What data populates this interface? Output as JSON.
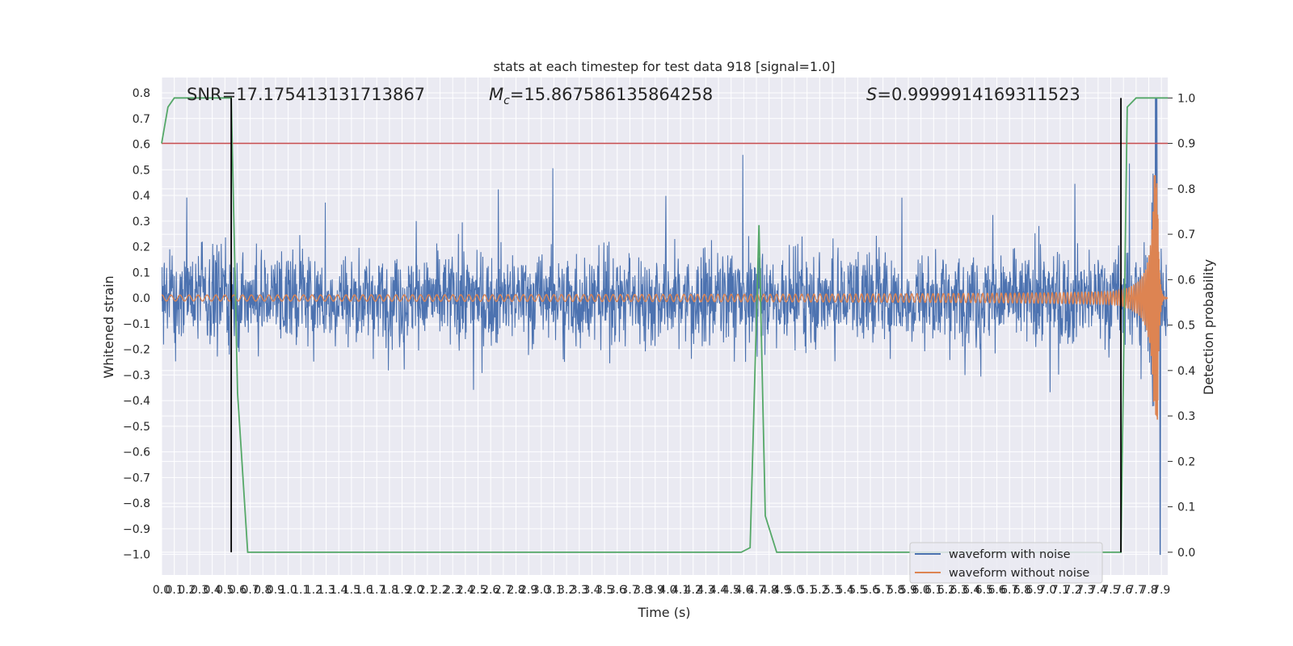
{
  "chart_data": {
    "type": "line",
    "title": "stats at each timestep for test data 918 [signal=1.0]",
    "xlabel": "Time (s)",
    "ylabel_left": "Whitened strain",
    "ylabel_right": "Detection probability",
    "xlim": [
      0.0,
      7.95
    ],
    "ylim_left": [
      -1.08,
      0.86
    ],
    "ylim_right": [
      -0.05,
      1.045
    ],
    "x_ticks": [
      "0.0",
      "0.1",
      "0.2",
      "0.3",
      "0.4",
      "0.5",
      "0.6",
      "0.7",
      "0.8",
      "0.9",
      "1.0",
      "1.1",
      "1.2",
      "1.3",
      "1.4",
      "1.5",
      "1.6",
      "1.7",
      "1.8",
      "1.9",
      "2.0",
      "2.1",
      "2.2",
      "2.3",
      "2.4",
      "2.5",
      "2.6",
      "2.7",
      "2.8",
      "2.9",
      "3.0",
      "3.1",
      "3.2",
      "3.3",
      "3.4",
      "3.5",
      "3.6",
      "3.7",
      "3.8",
      "3.9",
      "4.0",
      "4.1",
      "4.2",
      "4.3",
      "4.4",
      "4.5",
      "4.6",
      "4.7",
      "4.8",
      "4.9",
      "5.0",
      "5.1",
      "5.2",
      "5.3",
      "5.4",
      "5.5",
      "5.6",
      "5.7",
      "5.8",
      "5.9",
      "6.0",
      "6.1",
      "6.2",
      "6.3",
      "6.4",
      "6.5",
      "6.6",
      "6.7",
      "6.8",
      "6.9",
      "7.0",
      "7.1",
      "7.2",
      "7.3",
      "7.4",
      "7.5",
      "7.6",
      "7.7",
      "7.8",
      "7.9"
    ],
    "y_ticks_left": [
      "0.8",
      "0.7",
      "0.6",
      "0.5",
      "0.4",
      "0.3",
      "0.2",
      "0.1",
      "0.0",
      "−0.1",
      "−0.2",
      "−0.3",
      "−0.4",
      "−0.5",
      "−0.6",
      "−0.7",
      "−0.8",
      "−0.9",
      "−1.0"
    ],
    "y_ticks_right": [
      "1.0",
      "0.9",
      "0.8",
      "0.7",
      "0.6",
      "0.5",
      "0.4",
      "0.3",
      "0.2",
      "0.1",
      "0.0"
    ],
    "annotations": {
      "snr": "SNR=17.175413131713867",
      "mc_symbol": "M",
      "mc_sub": "c",
      "mc_value": "=15.867586135864258",
      "s_symbol": "S",
      "s_value": "=0.9999914169311523"
    },
    "threshold_line": {
      "y": 0.9,
      "axis": "right",
      "color": "#c44e52"
    },
    "vertical_markers": [
      {
        "x": 0.55,
        "y_from": 1.0,
        "y_to": 0.0
      },
      {
        "x": 7.58,
        "y_from": 1.0,
        "y_to": 0.0
      }
    ],
    "series": [
      {
        "name": "waveform with noise",
        "color": "#4c72b0",
        "axis": "left",
        "envelope": "noise band about ±0.3 with peaks near ±0.6, max 0.78 and min -1.0 near t=7.88"
      },
      {
        "name": "waveform without noise",
        "color": "#dd8452",
        "axis": "left",
        "envelope": "chirp: amplitude ~0.01 rising to ~0.48 near t=7.87, then ringdown to 0"
      },
      {
        "name": "detection probability",
        "color": "#55a868",
        "axis": "right",
        "x": [
          0.0,
          0.05,
          0.1,
          0.55,
          0.6,
          0.63,
          0.68,
          4.58,
          4.65,
          4.72,
          4.77,
          4.86,
          7.58,
          7.63,
          7.7,
          7.95
        ],
        "values": [
          0.9,
          0.98,
          1.0,
          1.0,
          0.35,
          0.22,
          0.0,
          0.0,
          0.01,
          0.72,
          0.08,
          0.0,
          0.0,
          0.98,
          1.0,
          1.0
        ]
      }
    ],
    "legend": {
      "placement": "lower right",
      "entries": [
        {
          "label": "waveform with noise",
          "color": "#4c72b0"
        },
        {
          "label": "waveform without noise",
          "color": "#dd8452"
        }
      ]
    },
    "grid": true
  }
}
